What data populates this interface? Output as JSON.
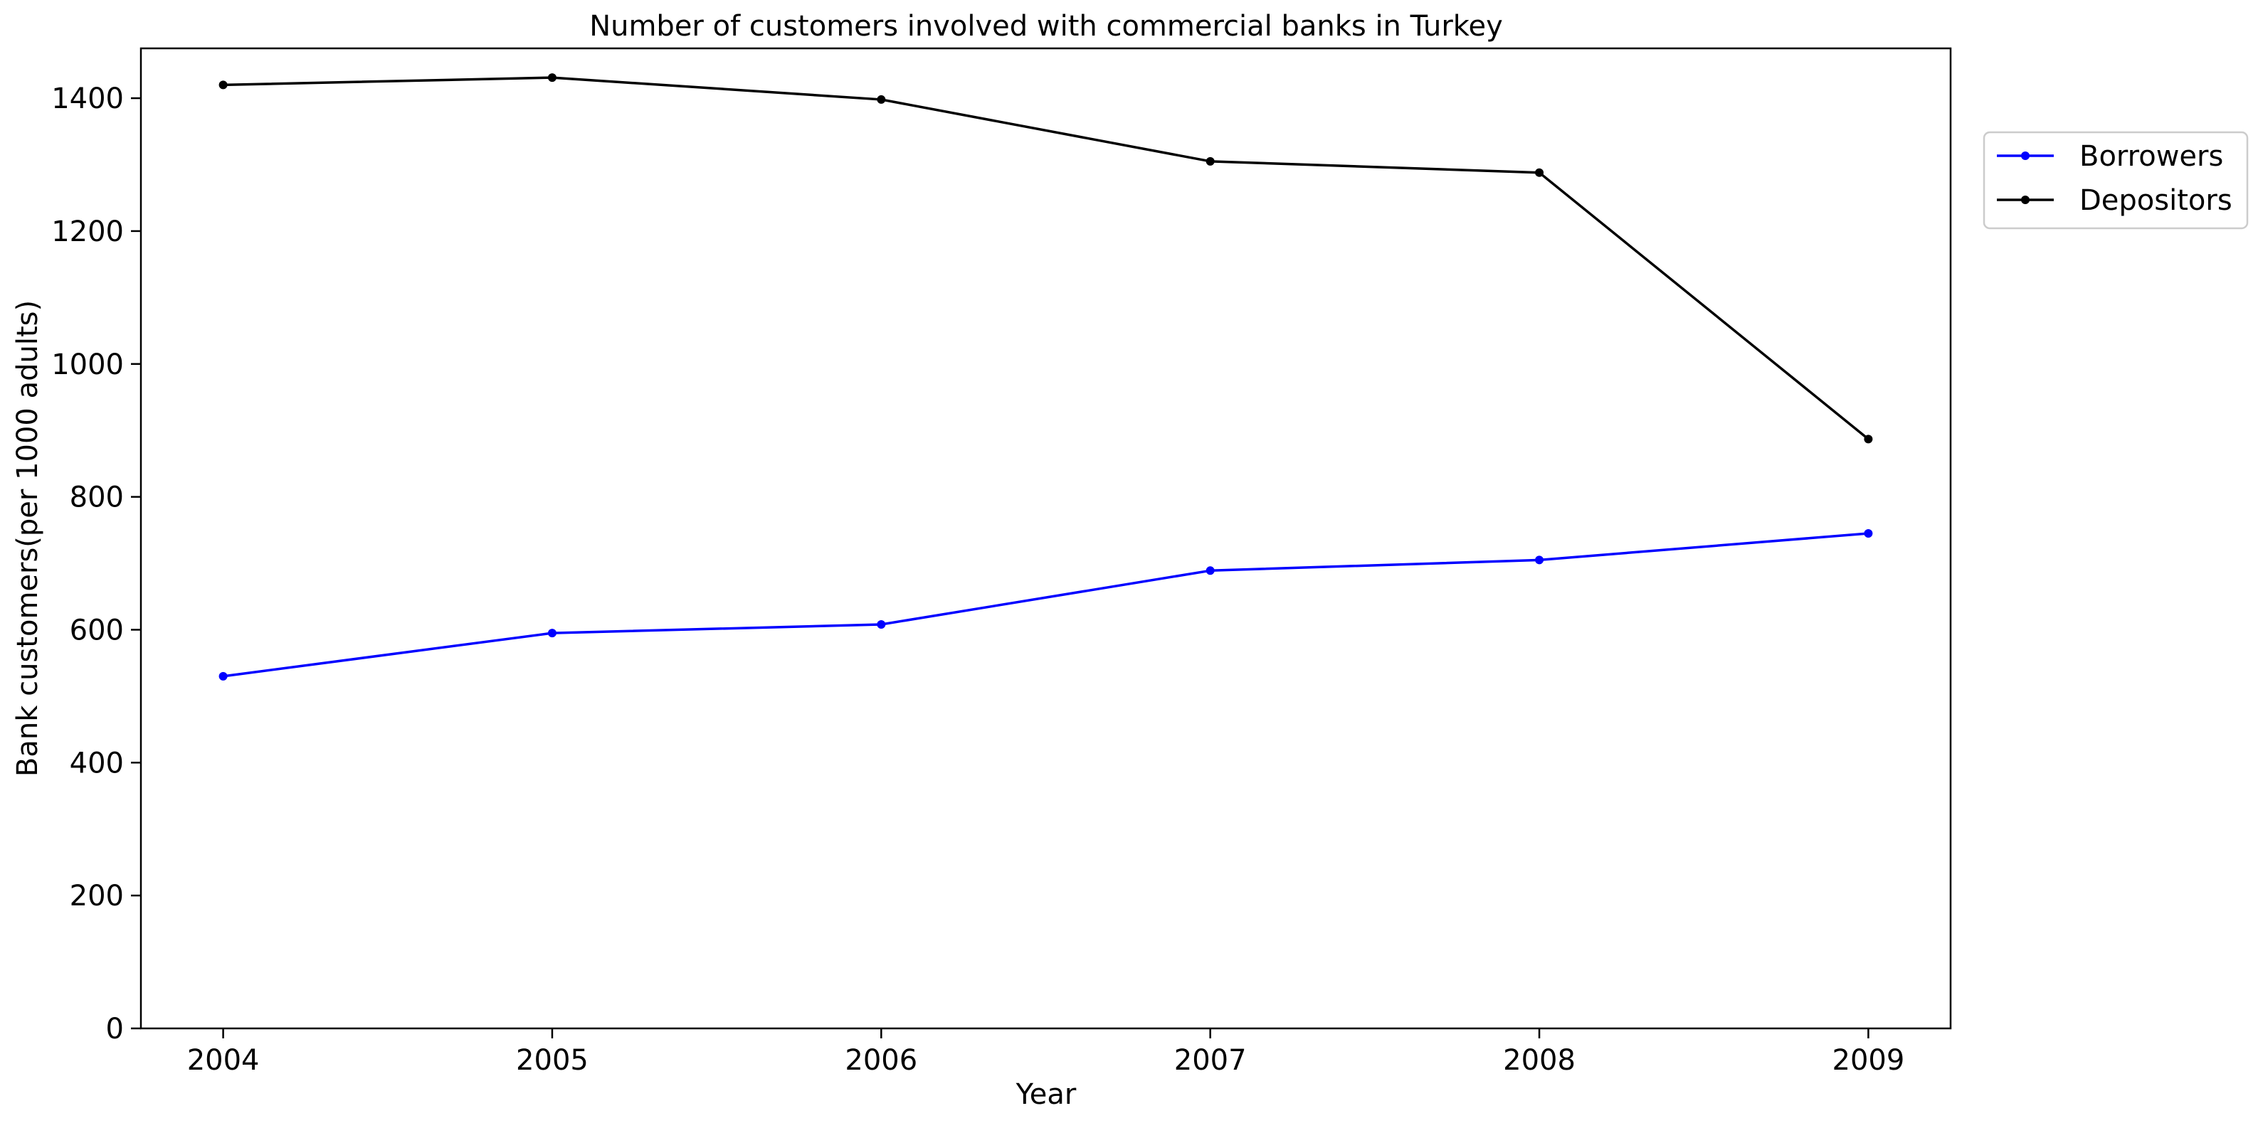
{
  "chart_data": {
    "type": "line",
    "title": "Number of customers involved with commercial banks in Turkey",
    "xlabel": "Year",
    "ylabel": "Bank customers(per 1000 adults)",
    "categories": [
      "2004",
      "2005",
      "2006",
      "2007",
      "2008",
      "2009"
    ],
    "x": [
      2004,
      2005,
      2006,
      2007,
      2008,
      2009
    ],
    "ylim": [
      0,
      1475
    ],
    "yticks": [
      0,
      200,
      400,
      600,
      800,
      1000,
      1200,
      1400
    ],
    "grid": false,
    "legend_position": "outside-top-right",
    "series": [
      {
        "name": "Borrowers",
        "color": "#0000ff",
        "marker": "dot",
        "values": [
          530,
          595,
          608,
          689,
          705,
          745
        ]
      },
      {
        "name": "Depositors",
        "color": "#000000",
        "marker": "dot",
        "values": [
          1420,
          1431,
          1398,
          1305,
          1288,
          887
        ]
      }
    ]
  }
}
